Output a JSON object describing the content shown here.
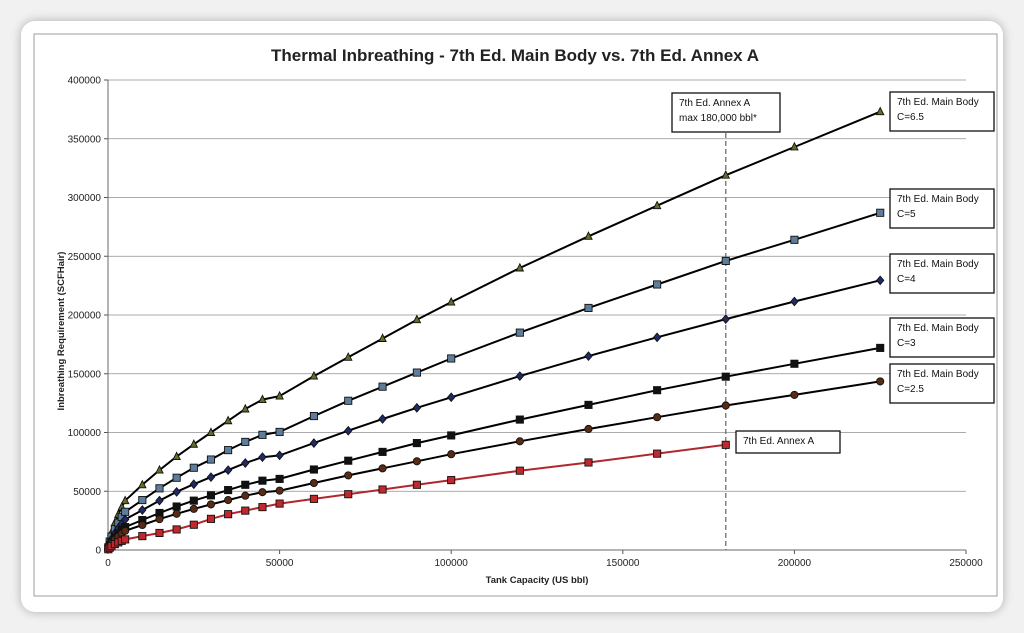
{
  "chart_data": {
    "type": "line",
    "title": "Thermal Inbreathing - 7th Ed. Main Body vs. 7th Ed. Annex A",
    "xlabel": "Tank Capacity (US bbl)",
    "ylabel": "Inbreathing Requirement (SCFHair)",
    "xlim": [
      0,
      250000
    ],
    "ylim": [
      0,
      400000
    ],
    "x_ticks": [
      "0",
      "50000",
      "100000",
      "150000",
      "200000",
      "250000"
    ],
    "y_ticks": [
      "0",
      "50000",
      "100000",
      "150000",
      "200000",
      "250000",
      "300000",
      "350000",
      "400000"
    ],
    "grid": "horizontal",
    "vertical_reference_line": {
      "x": 180000,
      "label_lines": [
        "7th Ed. Annex A",
        "max 180,000 bbl*"
      ]
    },
    "series": [
      {
        "name": "7th Ed. Main Body C=6.5",
        "label_lines": [
          "7th Ed. Main Body",
          "C=6.5"
        ],
        "marker": "triangle",
        "color": "#000000",
        "marker_fill": "#6b6b28",
        "x": [
          100,
          500,
          1000,
          2000,
          3000,
          4000,
          5000,
          10000,
          15000,
          20000,
          25000,
          30000,
          35000,
          40000,
          45000,
          50000,
          60000,
          70000,
          80000,
          90000,
          100000,
          120000,
          140000,
          160000,
          180000,
          200000,
          225000
        ],
        "y": [
          3000,
          9300,
          14800,
          23100,
          30200,
          36500,
          42000,
          55500,
          68000,
          79500,
          90000,
          100000,
          110000,
          120000,
          128000,
          131000,
          148000,
          164000,
          180000,
          196000,
          211000,
          240000,
          267000,
          293000,
          319000,
          343000,
          373000
        ]
      },
      {
        "name": "7th Ed. Main Body C=5",
        "label_lines": [
          "7th Ed. Main Body",
          "C=5"
        ],
        "marker": "square",
        "color": "#000000",
        "marker_fill": "#5c7e9c",
        "x": [
          100,
          500,
          1000,
          2000,
          3000,
          4000,
          5000,
          10000,
          15000,
          20000,
          25000,
          30000,
          35000,
          40000,
          45000,
          50000,
          60000,
          70000,
          80000,
          90000,
          100000,
          120000,
          140000,
          160000,
          180000,
          200000,
          225000
        ],
        "y": [
          2300,
          7200,
          11400,
          17800,
          23200,
          28100,
          32500,
          42500,
          52500,
          61500,
          70000,
          77000,
          85000,
          92000,
          98000,
          100500,
          114000,
          127000,
          139000,
          151000,
          163000,
          185000,
          206000,
          226000,
          246000,
          264000,
          287000
        ]
      },
      {
        "name": "7th Ed. Main Body C=4",
        "label_lines": [
          "7th Ed. Main Body",
          "C=4"
        ],
        "marker": "diamond",
        "color": "#000000",
        "marker_fill": "#1f2a66",
        "x": [
          100,
          500,
          1000,
          2000,
          3000,
          4000,
          5000,
          10000,
          15000,
          20000,
          25000,
          30000,
          35000,
          40000,
          45000,
          50000,
          60000,
          70000,
          80000,
          90000,
          100000,
          120000,
          140000,
          160000,
          180000,
          200000,
          225000
        ],
        "y": [
          1800,
          5700,
          9100,
          14200,
          18600,
          22500,
          26000,
          34000,
          42000,
          49500,
          56000,
          62000,
          68000,
          74000,
          79000,
          80500,
          91000,
          101500,
          111500,
          121000,
          130000,
          148000,
          165000,
          181000,
          196500,
          211500,
          229500
        ]
      },
      {
        "name": "7th Ed. Main Body C=3",
        "label_lines": [
          "7th Ed. Main Body",
          "C=3"
        ],
        "marker": "square",
        "color": "#000000",
        "marker_fill": "#111111",
        "x": [
          100,
          500,
          1000,
          2000,
          3000,
          4000,
          5000,
          10000,
          15000,
          20000,
          25000,
          30000,
          35000,
          40000,
          45000,
          50000,
          60000,
          70000,
          80000,
          90000,
          100000,
          120000,
          140000,
          160000,
          180000,
          200000,
          225000
        ],
        "y": [
          1400,
          4300,
          6800,
          10700,
          13900,
          16900,
          19500,
          25500,
          31500,
          37000,
          42000,
          46500,
          51000,
          55500,
          59000,
          60500,
          68500,
          76000,
          83500,
          91000,
          97500,
          111000,
          123500,
          136000,
          147500,
          158500,
          172000
        ]
      },
      {
        "name": "7th Ed. Main Body C=2.5",
        "label_lines": [
          "7th Ed. Main Body",
          "C=2.5"
        ],
        "marker": "circle",
        "color": "#000000",
        "marker_fill": "#5a2a14",
        "x": [
          100,
          500,
          1000,
          2000,
          3000,
          4000,
          5000,
          10000,
          15000,
          20000,
          25000,
          30000,
          35000,
          40000,
          45000,
          50000,
          60000,
          70000,
          80000,
          90000,
          100000,
          120000,
          140000,
          160000,
          180000,
          200000,
          225000
        ],
        "y": [
          1150,
          3600,
          5700,
          8900,
          11600,
          14100,
          16300,
          21300,
          26300,
          30800,
          35000,
          38800,
          42500,
          46200,
          49200,
          50500,
          57000,
          63500,
          69500,
          75500,
          81500,
          92500,
          103000,
          113000,
          123000,
          132000,
          143500
        ]
      },
      {
        "name": "7th Ed. Annex A",
        "label_lines": [
          "7th Ed. Annex A"
        ],
        "marker": "square",
        "color": "#b0282d",
        "marker_fill": "#c0282d",
        "x": [
          100,
          500,
          1000,
          2000,
          3000,
          4000,
          5000,
          10000,
          15000,
          20000,
          25000,
          30000,
          35000,
          40000,
          45000,
          50000,
          60000,
          70000,
          80000,
          90000,
          100000,
          120000,
          140000,
          160000,
          180000
        ],
        "y": [
          650,
          2000,
          3200,
          5000,
          6500,
          7800,
          9000,
          11800,
          14500,
          17500,
          21500,
          26500,
          30500,
          33500,
          36500,
          39500,
          43500,
          47500,
          51500,
          55500,
          59500,
          67500,
          74500,
          82000,
          89500
        ]
      }
    ]
  }
}
